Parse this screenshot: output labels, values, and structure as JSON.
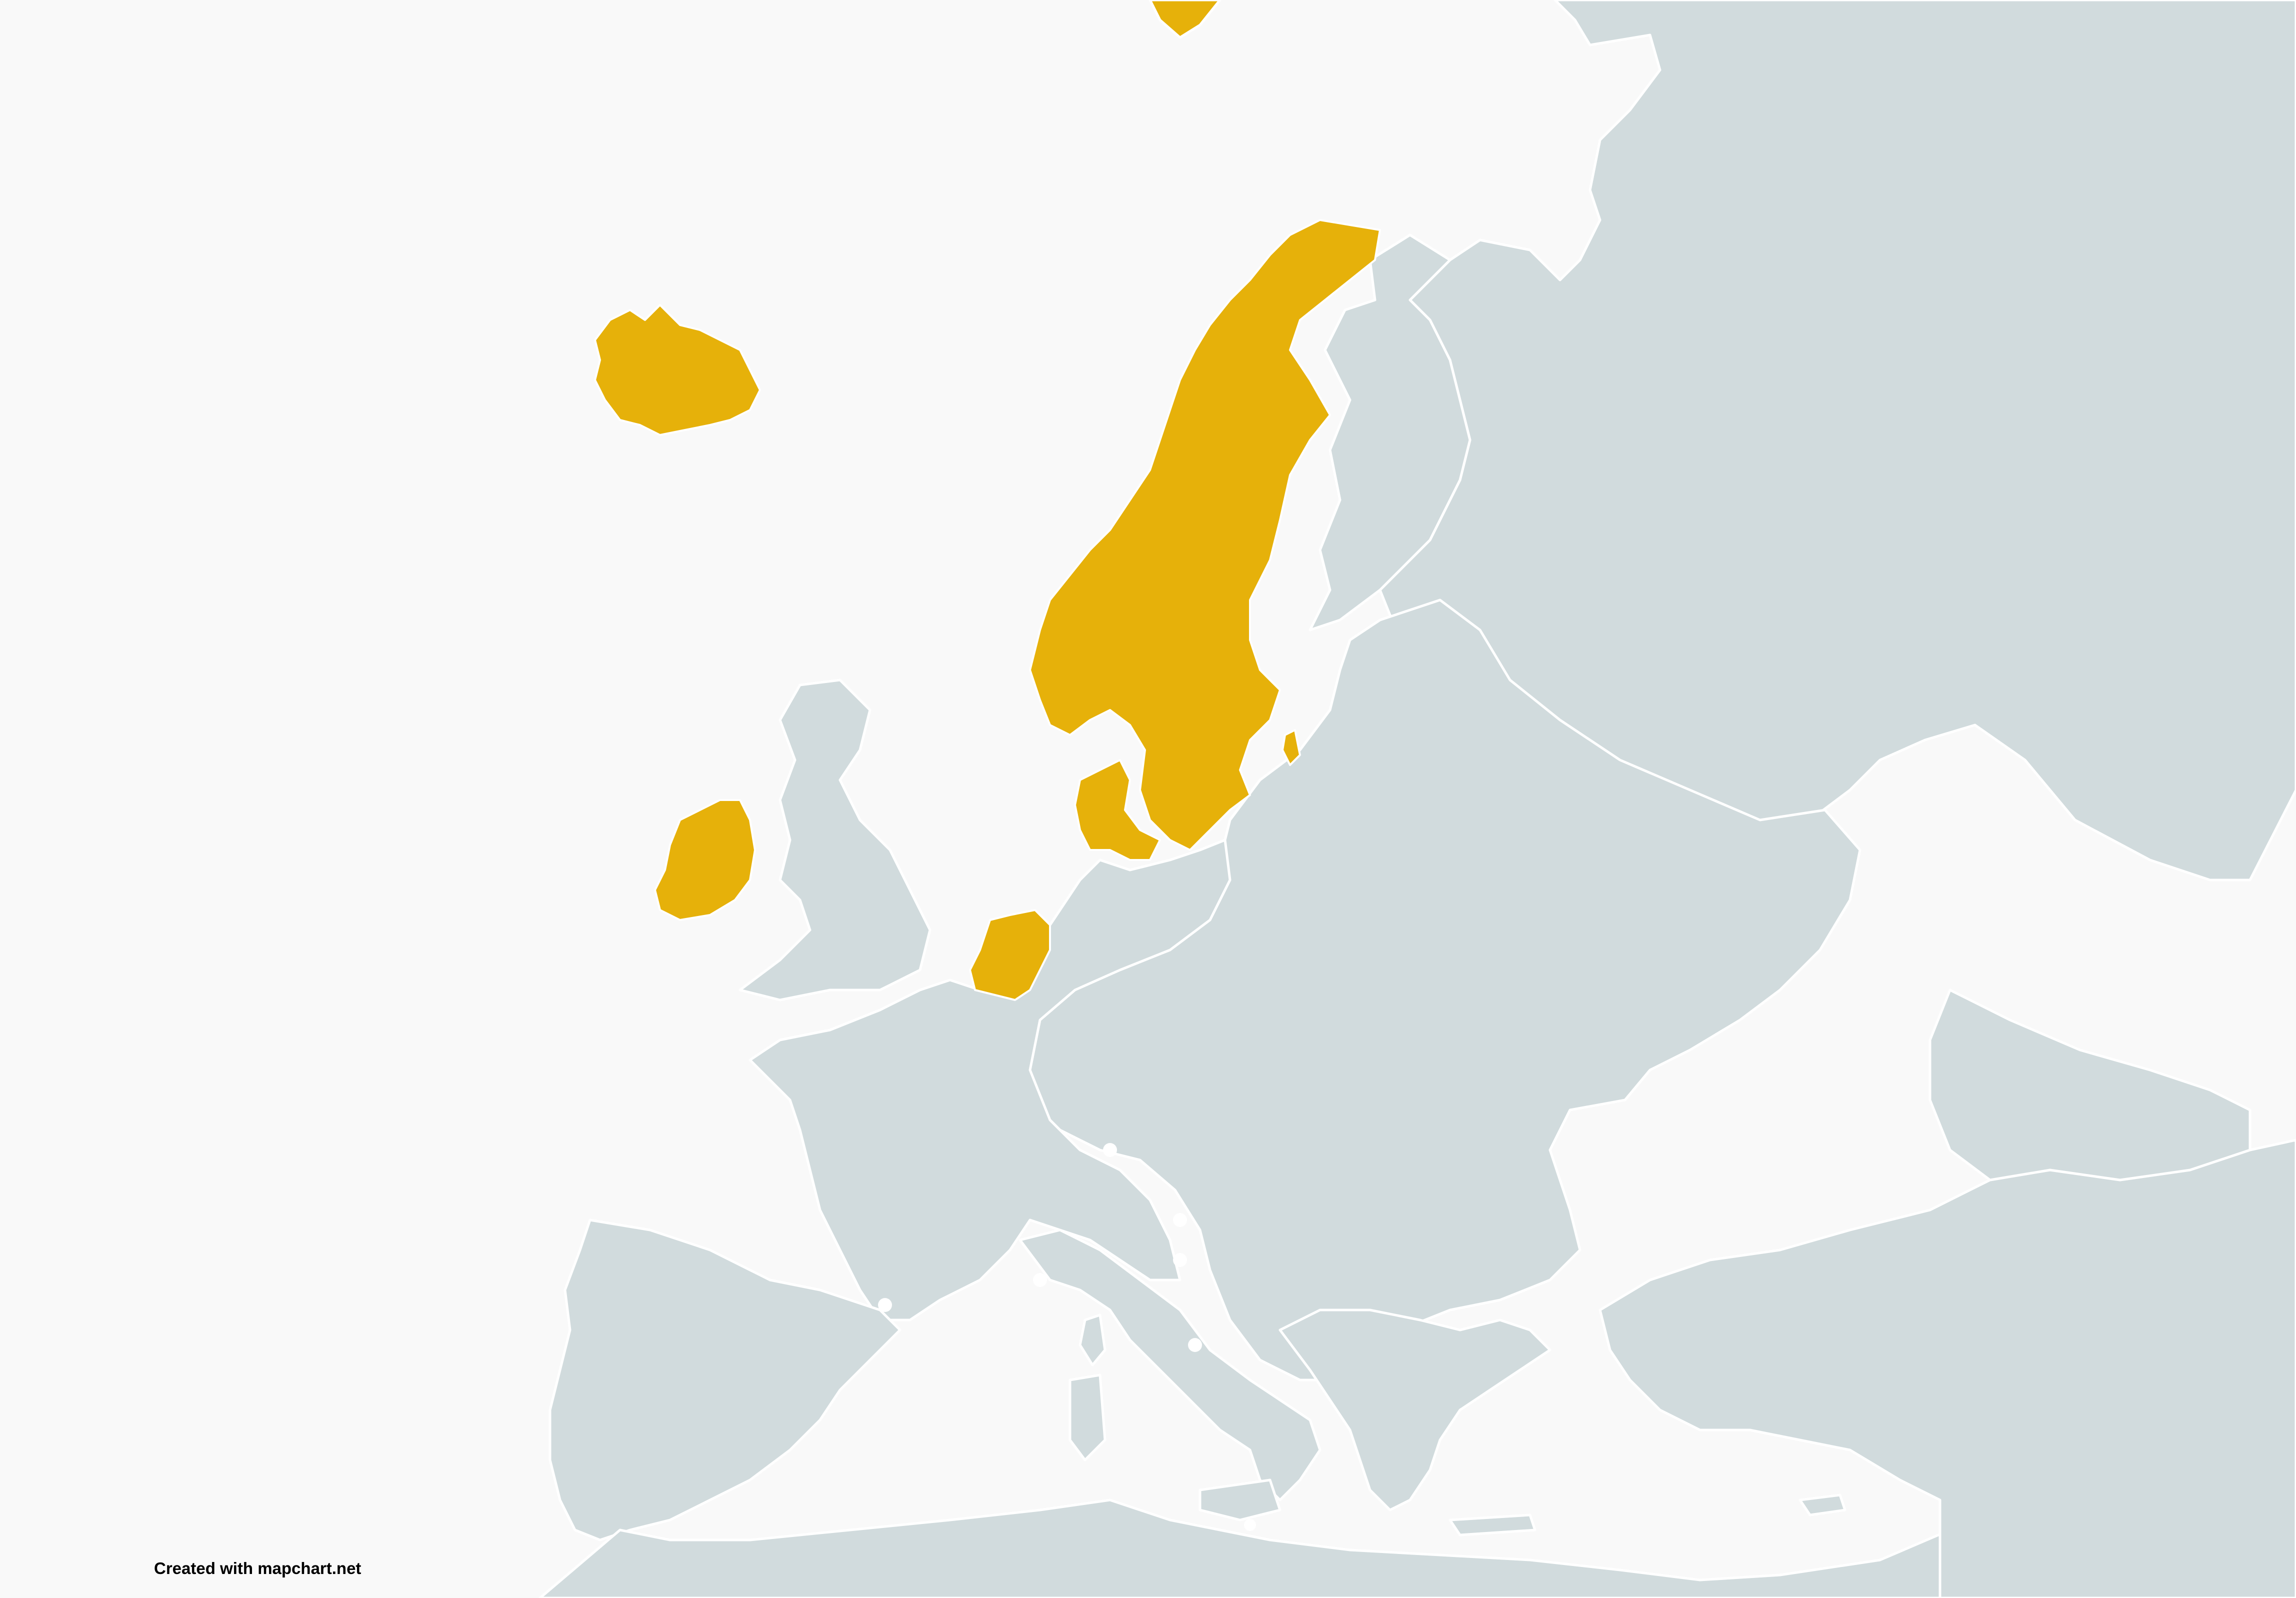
{
  "map": {
    "colors": {
      "sea": "#f9f9f9",
      "land": "#d1dbdd",
      "border": "#ffffff",
      "highlight": "#e6b10a"
    },
    "highlighted_countries": [
      "Iceland",
      "Norway",
      "Sweden",
      "Denmark",
      "Ireland",
      "Netherlands"
    ]
  },
  "credit": {
    "text": "Created with mapchart.net"
  }
}
